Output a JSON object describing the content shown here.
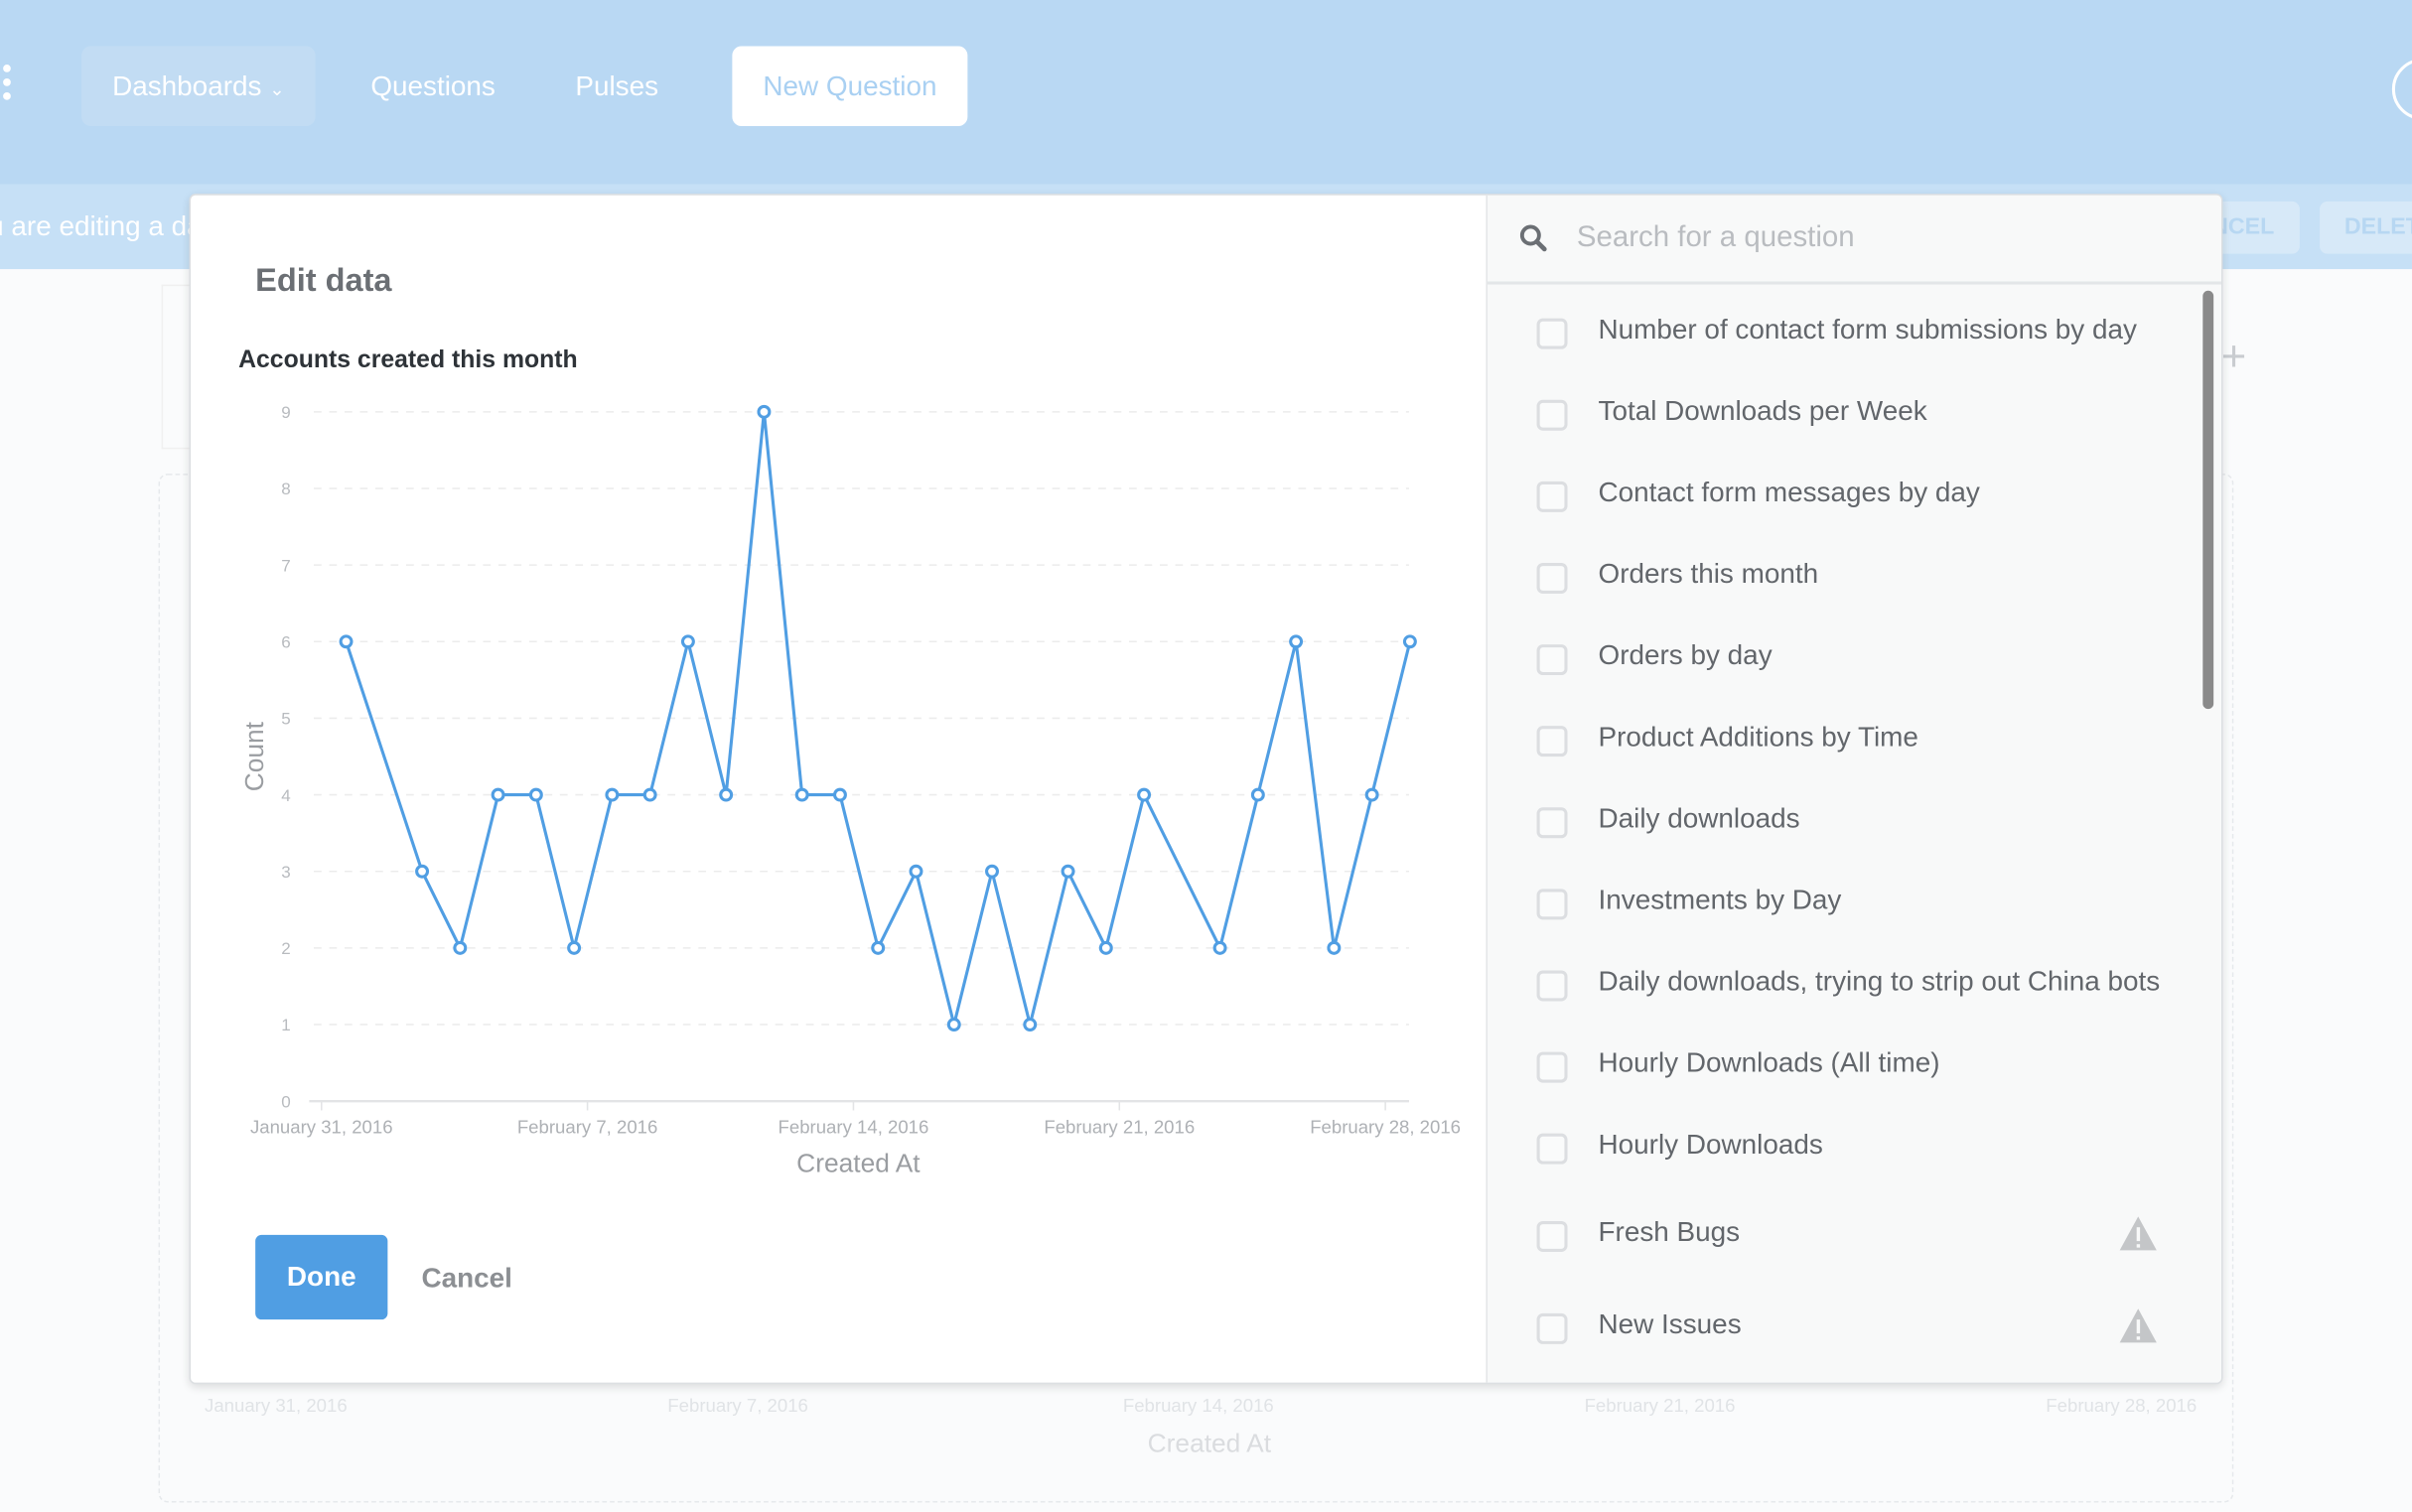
{
  "nav": {
    "items": [
      {
        "label": "Dashboards"
      },
      {
        "label": "Questions"
      },
      {
        "label": "Pulses"
      }
    ],
    "new_question": "New Question"
  },
  "edit_bar": {
    "message": "You are editing a dashboard",
    "cancel": "CANCEL",
    "delete": "DELETE"
  },
  "background_chart": {
    "x_ticks": [
      "January 31, 2016",
      "February 7, 2016",
      "February 14, 2016",
      "February 21, 2016",
      "February 28, 2016"
    ],
    "xlabel": "Created At"
  },
  "modal": {
    "title": "Edit data",
    "done": "Done",
    "cancel": "Cancel",
    "search_placeholder": "Search for a question",
    "questions": [
      {
        "label": "Number of contact form submissions by day",
        "warning": false
      },
      {
        "label": "Total Downloads per Week",
        "warning": false
      },
      {
        "label": "Contact form messages by day",
        "warning": false
      },
      {
        "label": "Orders this month",
        "warning": false
      },
      {
        "label": "Orders by day",
        "warning": false
      },
      {
        "label": "Product Additions by Time",
        "warning": false
      },
      {
        "label": "Daily downloads",
        "warning": false
      },
      {
        "label": "Investments by Day",
        "warning": false
      },
      {
        "label": "Daily downloads, trying to strip out China bots",
        "warning": false
      },
      {
        "label": "Hourly Downloads (All time)",
        "warning": false
      },
      {
        "label": "Hourly Downloads",
        "warning": false
      },
      {
        "label": "Fresh Bugs",
        "warning": true
      },
      {
        "label": "New Issues",
        "warning": true
      }
    ]
  },
  "chart_data": {
    "type": "line",
    "title": "Accounts created this month",
    "xlabel": "Created At",
    "ylabel": "Count",
    "ylim": [
      0,
      9
    ],
    "y_ticks": [
      "0",
      "1",
      "2",
      "3",
      "4",
      "5",
      "6",
      "7",
      "8",
      "9"
    ],
    "x_ticks": [
      "January 31, 2016",
      "February 7, 2016",
      "February 14, 2016",
      "February 21, 2016",
      "February 28, 2016"
    ],
    "grid": true,
    "color": "#509ee3",
    "x": [
      "2016-02-01",
      "2016-02-03",
      "2016-02-04",
      "2016-02-05",
      "2016-02-06",
      "2016-02-07",
      "2016-02-08",
      "2016-02-09",
      "2016-02-10",
      "2016-02-11",
      "2016-02-12",
      "2016-02-13",
      "2016-02-14",
      "2016-02-15",
      "2016-02-16",
      "2016-02-17",
      "2016-02-18",
      "2016-02-19",
      "2016-02-20",
      "2016-02-21",
      "2016-02-22",
      "2016-02-24",
      "2016-02-25",
      "2016-02-26",
      "2016-02-27",
      "2016-02-28",
      "2016-02-29"
    ],
    "values": [
      6,
      3,
      2,
      4,
      4,
      2,
      4,
      4,
      6,
      4,
      9,
      4,
      4,
      2,
      3,
      1,
      3,
      1,
      3,
      2,
      4,
      2,
      4,
      6,
      2,
      4,
      6
    ]
  }
}
